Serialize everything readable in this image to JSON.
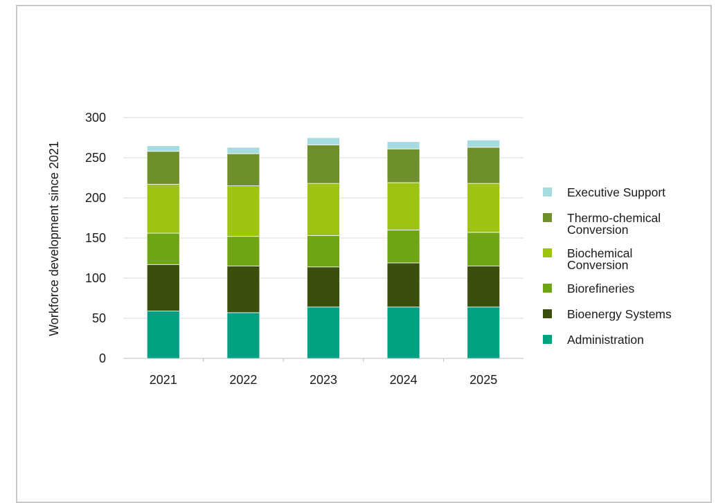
{
  "chart_data": {
    "type": "bar",
    "stacked": true,
    "title": "",
    "xlabel": "",
    "ylabel": "Workforce development since 2021",
    "ylim": [
      0,
      300
    ],
    "yticks": [
      0,
      50,
      100,
      150,
      200,
      250,
      300
    ],
    "grid": true,
    "legend_position": "right",
    "categories": [
      "2021",
      "2022",
      "2023",
      "2024",
      "2025"
    ],
    "series": [
      {
        "name": "Administration",
        "color": "#00a082",
        "values": [
          59,
          57,
          64,
          64,
          64
        ]
      },
      {
        "name": "Bioenergy Systems",
        "color": "#3a4f0c",
        "values": [
          58,
          58,
          50,
          55,
          51
        ]
      },
      {
        "name": "Biorefineries",
        "color": "#6fa514",
        "values": [
          39,
          37,
          39,
          41,
          42
        ]
      },
      {
        "name": "Biochemical Conversion",
        "color": "#9dc413",
        "values": [
          61,
          63,
          65,
          59,
          61
        ]
      },
      {
        "name": "Thermo-chemical Conversion",
        "color": "#6f8f2c",
        "values": [
          41,
          40,
          48,
          42,
          45
        ]
      },
      {
        "name": "Executive Support",
        "color": "#a6dbe0",
        "values": [
          7,
          8,
          9,
          9,
          9
        ]
      }
    ],
    "legend_order": [
      "Executive Support",
      "Thermo-chemical Conversion",
      "Biochemical Conversion",
      "Biorefineries",
      "Bioenergy Systems",
      "Administration"
    ]
  }
}
